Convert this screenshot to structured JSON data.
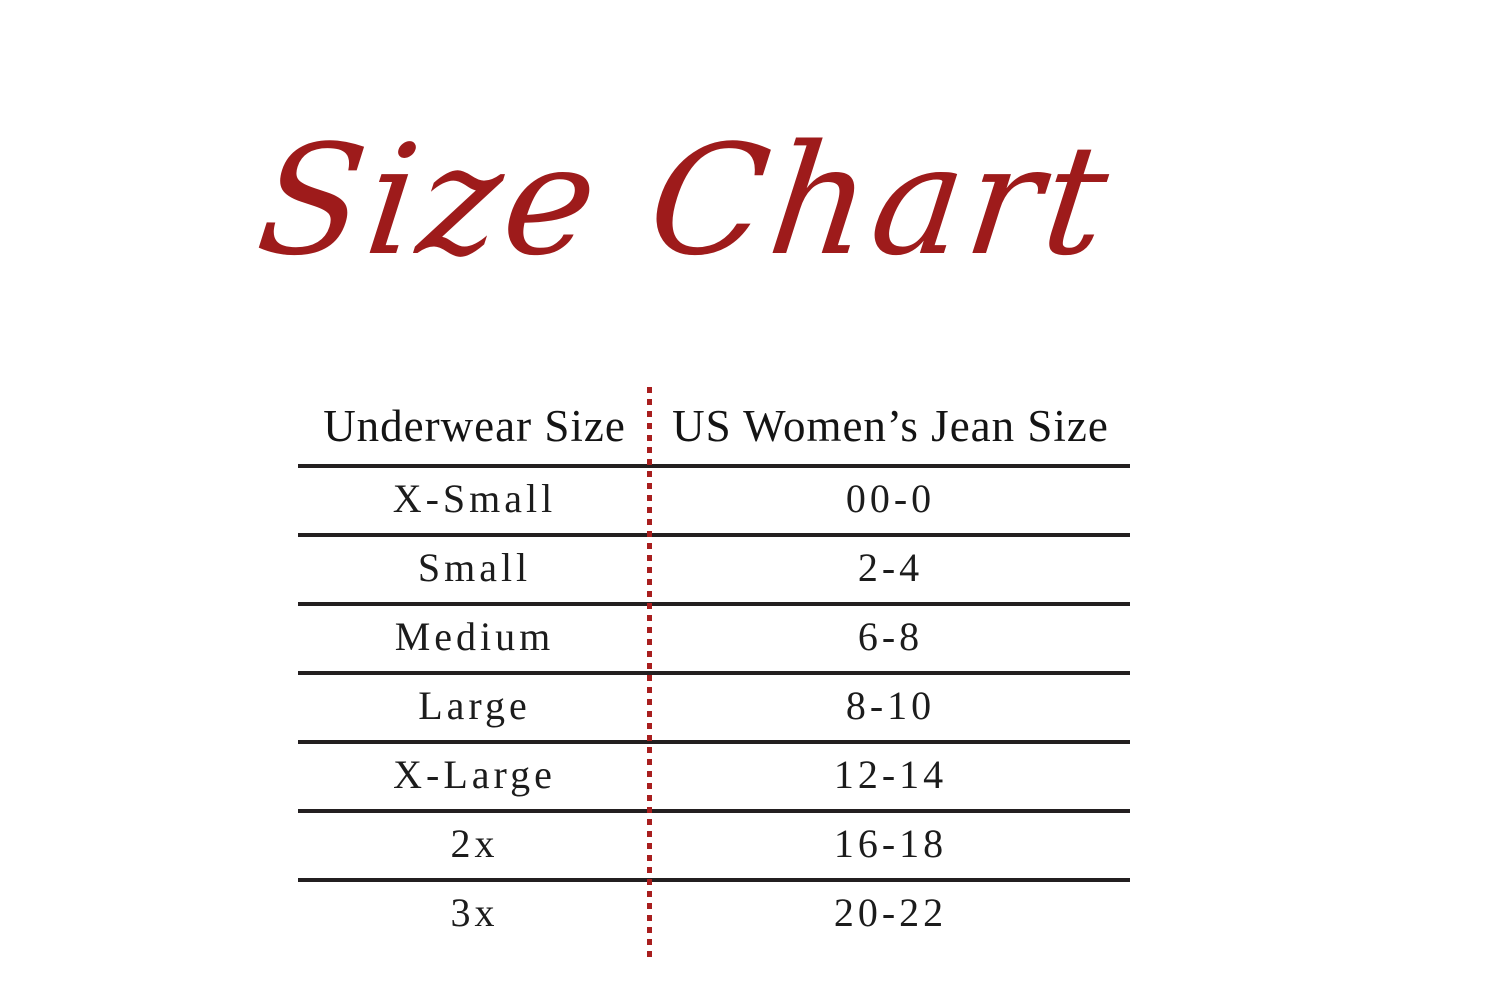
{
  "title": {
    "text": "Size Chart"
  },
  "colors": {
    "title_red": "#9e1b1b",
    "divider_red": "#a81e1e",
    "row_line": "#231f20"
  },
  "table": {
    "columns": [
      "Underwear Size",
      "US Women’s Jean Size"
    ],
    "rows": [
      {
        "size": "X-Small",
        "jean": "00-0"
      },
      {
        "size": "Small",
        "jean": "2-4"
      },
      {
        "size": "Medium",
        "jean": "6-8"
      },
      {
        "size": "Large",
        "jean": "8-10"
      },
      {
        "size": "X-Large",
        "jean": "12-14"
      },
      {
        "size": "2x",
        "jean": "16-18"
      },
      {
        "size": "3x",
        "jean": "20-22"
      }
    ]
  },
  "chart_data": {
    "type": "table",
    "title": "Size Chart",
    "columns": [
      "Underwear Size",
      "US Women’s Jean Size"
    ],
    "rows": [
      [
        "X-Small",
        "00-0"
      ],
      [
        "Small",
        "2-4"
      ],
      [
        "Medium",
        "6-8"
      ],
      [
        "Large",
        "8-10"
      ],
      [
        "X-Large",
        "12-14"
      ],
      [
        "2x",
        "16-18"
      ],
      [
        "3x",
        "20-22"
      ]
    ],
    "layout": {
      "header_divider": "horizontal dark rules between all rows, no outer border, no bottom rule",
      "column_divider": "red dotted vertical line between columns"
    }
  }
}
